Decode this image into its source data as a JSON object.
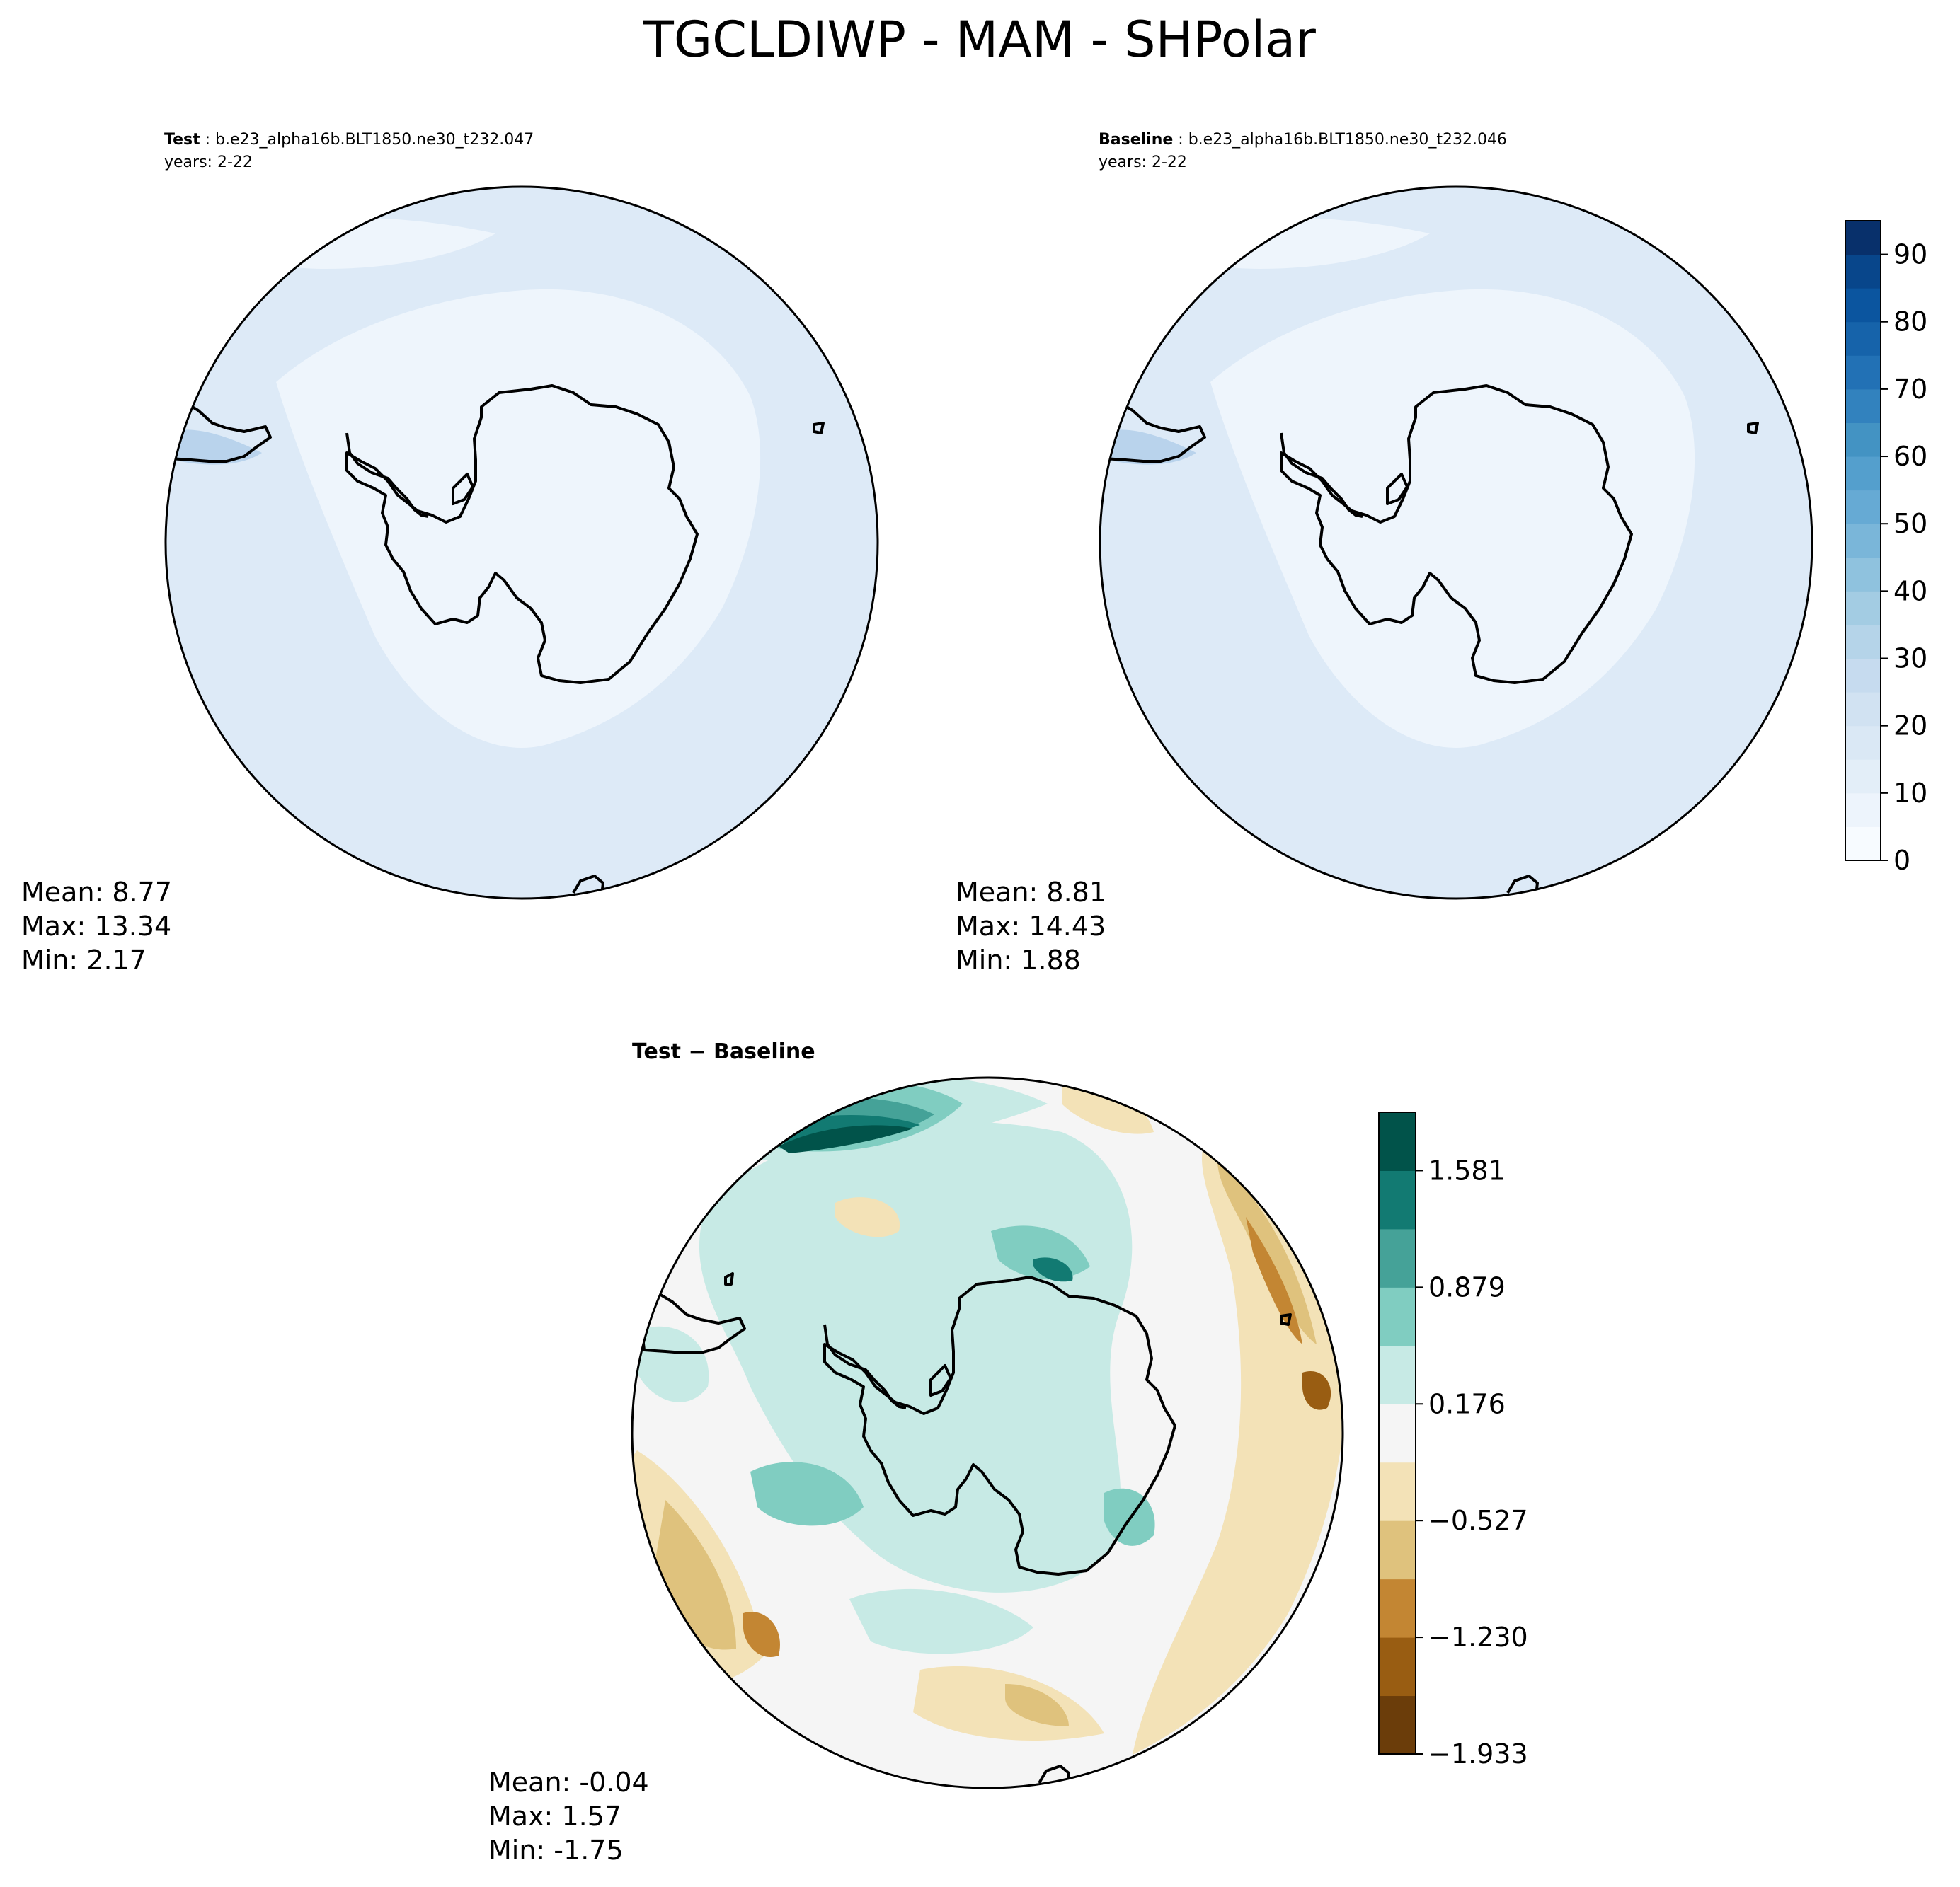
{
  "figure": {
    "title": "TGCLDIWP - MAM - SHPolar"
  },
  "panels": [
    {
      "id": "test",
      "label_bold": "Test",
      "label_rest": " : b.e23_alpha16b.BLT1850.ne30_t232.047",
      "years": "years: 2-22",
      "stats": {
        "mean": "Mean:  8.77",
        "max": "Max: 13.34",
        "min": "Min:  2.17"
      }
    },
    {
      "id": "baseline",
      "label_bold": "Baseline",
      "label_rest": " : b.e23_alpha16b.BLT1850.ne30_t232.046",
      "years": "years: 2-22",
      "stats": {
        "mean": "Mean:  8.81",
        "max": "Max: 14.43",
        "min": "Min:  1.88"
      }
    },
    {
      "id": "diff",
      "label_bold": "Test − Baseline",
      "stats": {
        "mean": "Mean: -0.04",
        "max": "Max:  1.57",
        "min": "Min: -1.75"
      }
    }
  ],
  "colorbars": {
    "main": {
      "ticks": [
        "0",
        "10",
        "20",
        "30",
        "40",
        "50",
        "60",
        "70",
        "80",
        "90"
      ],
      "range": [
        0,
        95
      ],
      "levels": 19,
      "colors": [
        "#f7fbff",
        "#edf4fc",
        "#e3eef8",
        "#dae8f5",
        "#d1e2f2",
        "#c6dbef",
        "#b5d4e9",
        "#a3cce3",
        "#8fc2de",
        "#7ab6d9",
        "#66aad4",
        "#549fcd",
        "#4393c3",
        "#3282be",
        "#2271b5",
        "#1663aa",
        "#0b559f",
        "#08468b",
        "#08306b"
      ]
    },
    "diff": {
      "ticks": [
        "1.581",
        "0.879",
        "0.176",
        "−0.527",
        "−1.230",
        "−1.933"
      ],
      "colors": [
        "#6b3d0a",
        "#995d12",
        "#c38633",
        "#dfc27d",
        "#f3e2b7",
        "#f5f5f5",
        "#c7eae5",
        "#80cdc1",
        "#45a298",
        "#127a72",
        "#01534a"
      ]
    }
  },
  "map_colors": {
    "light": "#eef5fc",
    "medium": "#ddeaf7",
    "deep": "#b9d3ec",
    "coast": "#000000"
  }
}
